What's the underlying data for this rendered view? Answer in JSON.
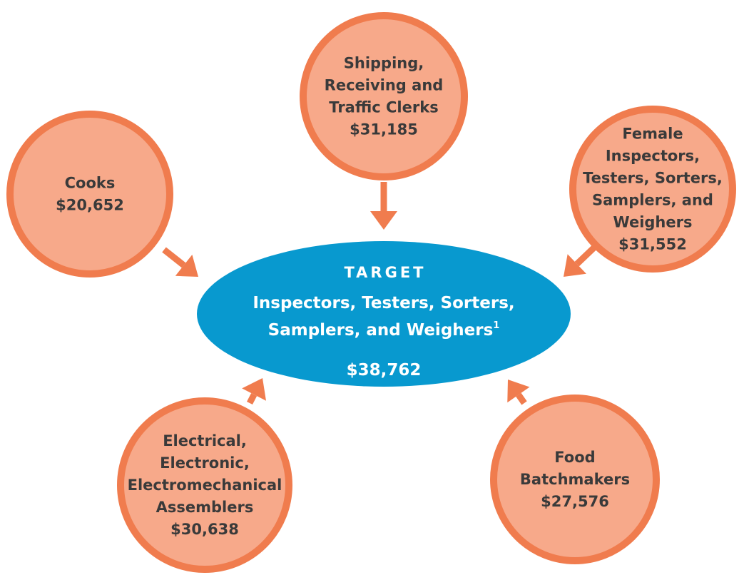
{
  "target": {
    "heading": "TARGET",
    "lines": [
      "Inspectors, Testers, Sorters,",
      "Samplers, and Weighers"
    ],
    "footnote": "1",
    "value": "$38,762"
  },
  "nodes": [
    {
      "lines": [
        "Shipping,",
        "Receiving and",
        "Traffic Clerks"
      ],
      "value": "$31,185"
    },
    {
      "lines": [
        "Cooks"
      ],
      "value": "$20,652"
    },
    {
      "lines": [
        "Female",
        "Inspectors,",
        "Testers, Sorters,",
        "Samplers, and",
        "Weighers"
      ],
      "value": "$31,552"
    },
    {
      "lines": [
        "Electrical,",
        "Electronic,",
        "Electromechanical",
        "Assemblers"
      ],
      "value": "$30,638"
    },
    {
      "lines": [
        "Food",
        "Batchmakers"
      ],
      "value": "$27,576"
    }
  ]
}
